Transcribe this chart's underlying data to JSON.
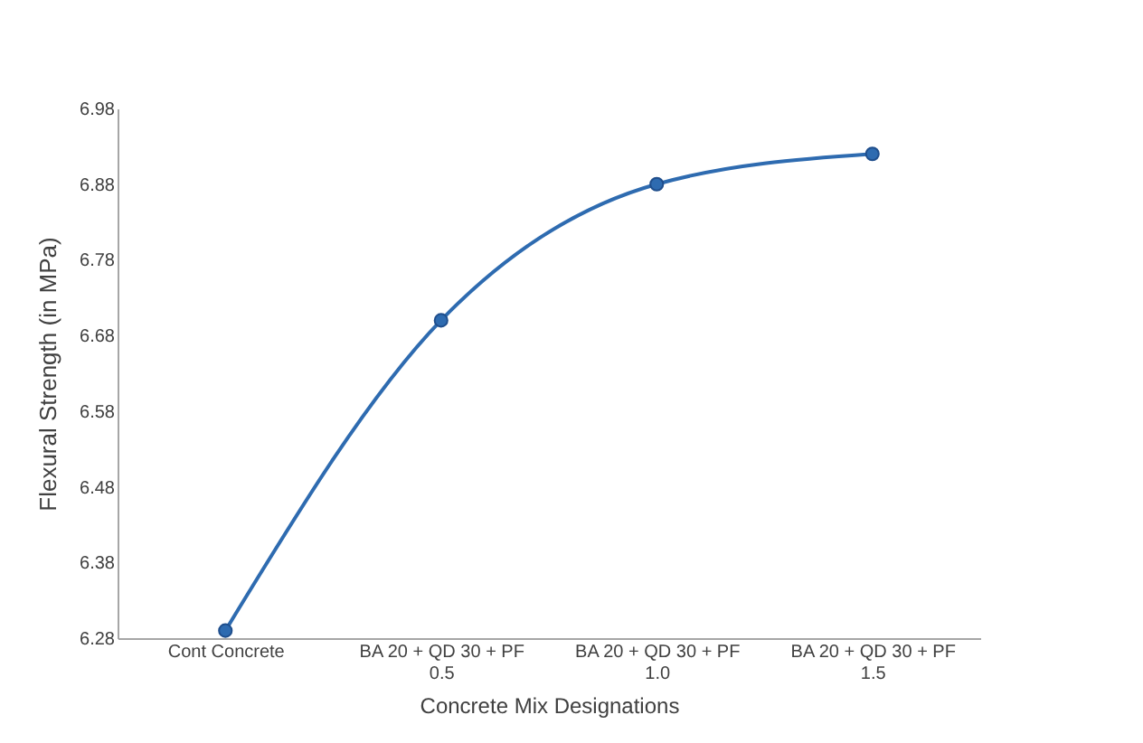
{
  "chart_data": {
    "type": "line",
    "categories": [
      "Cont Concrete",
      "BA 20 + QD 30 + PF\n0.5",
      "BA 20 + QD 30 + PF\n1.0",
      "BA 20 + QD 30 + PF\n1.5"
    ],
    "series": [
      {
        "color": "#2e6bb0",
        "values": [
          6.29,
          6.7,
          6.88,
          6.92
        ]
      }
    ],
    "xlabel": "Concrete Mix Designations",
    "ylabel": "Flexural Strength (in MPa)",
    "ylim": [
      6.28,
      6.98
    ],
    "yticks": [
      6.28,
      6.38,
      6.48,
      6.58,
      6.68,
      6.78,
      6.88,
      6.98
    ],
    "grid": false,
    "marker": "circle",
    "line_style": "solid"
  }
}
